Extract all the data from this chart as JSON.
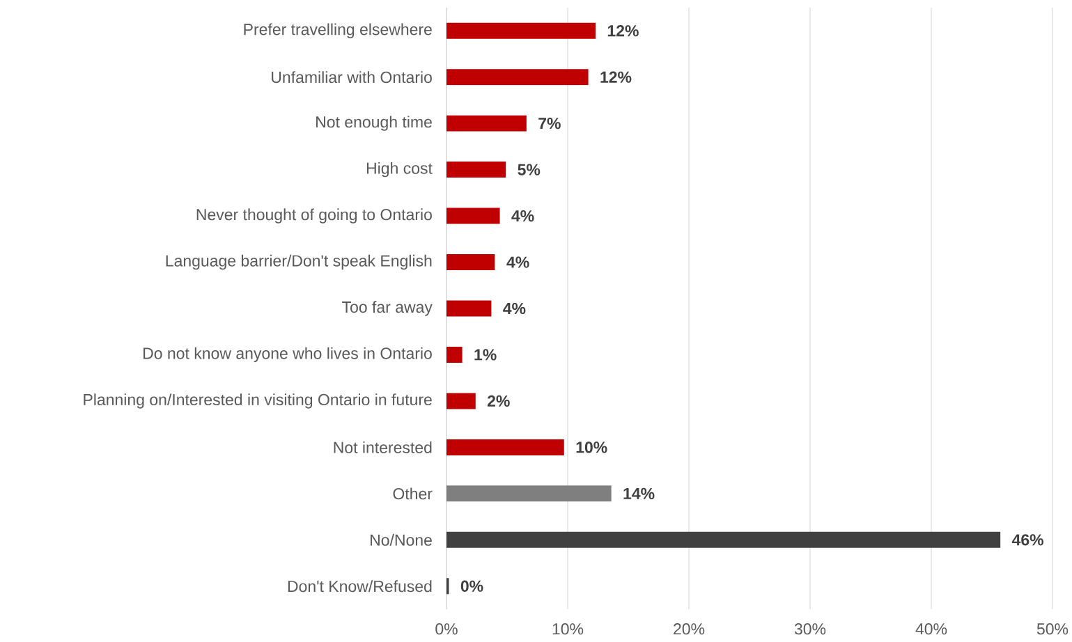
{
  "chart_data": {
    "type": "bar",
    "orientation": "horizontal",
    "categories": [
      "Prefer travelling elsewhere",
      "Unfamiliar with Ontario",
      "Not enough time",
      "High cost",
      "Never thought of going to Ontario",
      "Language barrier/Don't speak English",
      "Too far away",
      "Do not know anyone who lives in Ontario",
      "Planning on/Interested in visiting Ontario in future",
      "Not interested",
      "Other",
      "No/None",
      "Don't Know/Refused"
    ],
    "values": [
      12.3,
      11.7,
      6.6,
      4.9,
      4.4,
      4.0,
      3.7,
      1.3,
      2.4,
      9.7,
      13.6,
      45.7,
      0.2
    ],
    "value_labels": [
      "12%",
      "12%",
      "7%",
      "5%",
      "4%",
      "4%",
      "4%",
      "1%",
      "2%",
      "10%",
      "14%",
      "46%",
      "0%"
    ],
    "colors": [
      "#c00000",
      "#c00000",
      "#c00000",
      "#c00000",
      "#c00000",
      "#c00000",
      "#c00000",
      "#c00000",
      "#c00000",
      "#c00000",
      "#7f7f7f",
      "#404040",
      "#404040"
    ],
    "xlim": [
      0,
      50
    ],
    "xticks": [
      {
        "value": 0,
        "label": "0%"
      },
      {
        "value": 10,
        "label": "10%"
      },
      {
        "value": 20,
        "label": "20%"
      },
      {
        "value": 30,
        "label": "30%"
      },
      {
        "value": 40,
        "label": "40%"
      },
      {
        "value": 50,
        "label": "50%"
      }
    ],
    "grid": "x"
  }
}
